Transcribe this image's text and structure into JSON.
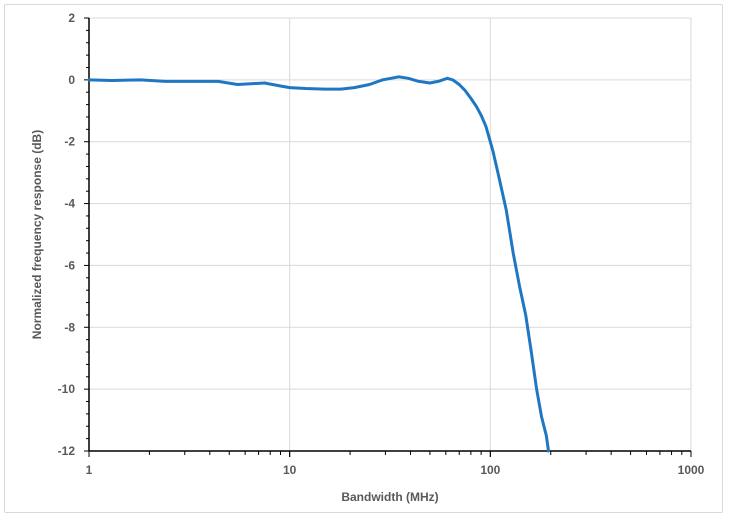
{
  "chart_data": {
    "type": "line",
    "title": "",
    "xlabel": "Bandwidth (MHz)",
    "ylabel": "Normalized frequency response (dB)",
    "x_scale": "log",
    "xlim": [
      1,
      1000
    ],
    "ylim": [
      -12,
      2
    ],
    "x_ticks": [
      1,
      10,
      100,
      1000
    ],
    "x_tick_labels": [
      "1",
      "10",
      "100",
      "1000"
    ],
    "y_ticks": [
      2,
      0,
      -2,
      -4,
      -6,
      -8,
      -10,
      -12
    ],
    "y_tick_labels": [
      "2",
      "0",
      "-2",
      "-4",
      "-6",
      "-8",
      "-10",
      "-12"
    ],
    "grid": true,
    "legend": "none",
    "series": [
      {
        "color": "#1f77c4",
        "x": [
          1,
          1.3,
          1.8,
          2.4,
          3,
          4.4,
          5.5,
          7.5,
          9,
          10,
          12,
          15,
          18,
          21,
          25,
          29,
          32,
          35,
          39,
          44,
          50,
          55,
          61,
          65,
          70,
          75,
          80,
          85,
          90,
          95,
          100,
          103,
          110,
          120,
          130,
          140,
          150,
          160,
          170,
          180,
          190,
          195
        ],
        "y": [
          0.0,
          -0.02,
          0.0,
          -0.05,
          -0.05,
          -0.05,
          -0.15,
          -0.1,
          -0.2,
          -0.25,
          -0.28,
          -0.3,
          -0.3,
          -0.25,
          -0.15,
          0.0,
          0.05,
          0.1,
          0.05,
          -0.05,
          -0.1,
          -0.05,
          0.05,
          0.0,
          -0.15,
          -0.35,
          -0.6,
          -0.85,
          -1.15,
          -1.5,
          -2.0,
          -2.3,
          -3.1,
          -4.2,
          -5.6,
          -6.7,
          -7.6,
          -8.8,
          -10.0,
          -10.9,
          -11.5,
          -12.0
        ]
      }
    ]
  }
}
